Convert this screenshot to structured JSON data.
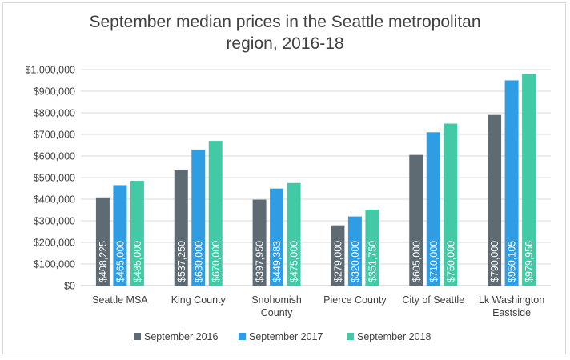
{
  "chart_data": {
    "type": "bar",
    "title_lines": [
      "September median prices in the Seattle metropolitan",
      "region, 2016-18"
    ],
    "categories": [
      [
        "Seattle MSA"
      ],
      [
        "King County"
      ],
      [
        "Snohomish",
        "County"
      ],
      [
        "Pierce County"
      ],
      [
        "City of Seattle"
      ],
      [
        "Lk Washington",
        "Eastside"
      ]
    ],
    "series": [
      {
        "name": "September 2016",
        "color": "#5f6b73",
        "values": [
          408225,
          537250,
          397950,
          279000,
          605000,
          790000
        ],
        "labels": [
          "$408,225",
          "$537,250",
          "$397,950",
          "$279,000",
          "$605,000",
          "$790,000"
        ]
      },
      {
        "name": "September 2017",
        "color": "#2f9de4",
        "values": [
          465000,
          630000,
          449383,
          320000,
          710000,
          950105
        ],
        "labels": [
          "$465,000",
          "$630,000",
          "$449,383",
          "$320,000",
          "$710,000",
          "$950,105"
        ]
      },
      {
        "name": "September 2018",
        "color": "#42c9a6",
        "values": [
          485000,
          670000,
          475000,
          351750,
          750000,
          979956
        ],
        "labels": [
          "$485,000",
          "$670,000",
          "$475,000",
          "$351,750",
          "$750,000",
          "$979,956"
        ]
      }
    ],
    "ylim": [
      0,
      1000000
    ],
    "yticks": [
      {
        "value": 0,
        "label": "$0"
      },
      {
        "value": 100000,
        "label": "$100,000"
      },
      {
        "value": 200000,
        "label": "$200,000"
      },
      {
        "value": 300000,
        "label": "$300,000"
      },
      {
        "value": 400000,
        "label": "$400,000"
      },
      {
        "value": 500000,
        "label": "$500,000"
      },
      {
        "value": 600000,
        "label": "$600,000"
      },
      {
        "value": 700000,
        "label": "$700,000"
      },
      {
        "value": 800000,
        "label": "$800,000"
      },
      {
        "value": 900000,
        "label": "$900,000"
      },
      {
        "value": 1000000,
        "label": "$1,000,000"
      }
    ],
    "grid": true,
    "legend": "bottom",
    "xlabel": "",
    "ylabel": ""
  }
}
